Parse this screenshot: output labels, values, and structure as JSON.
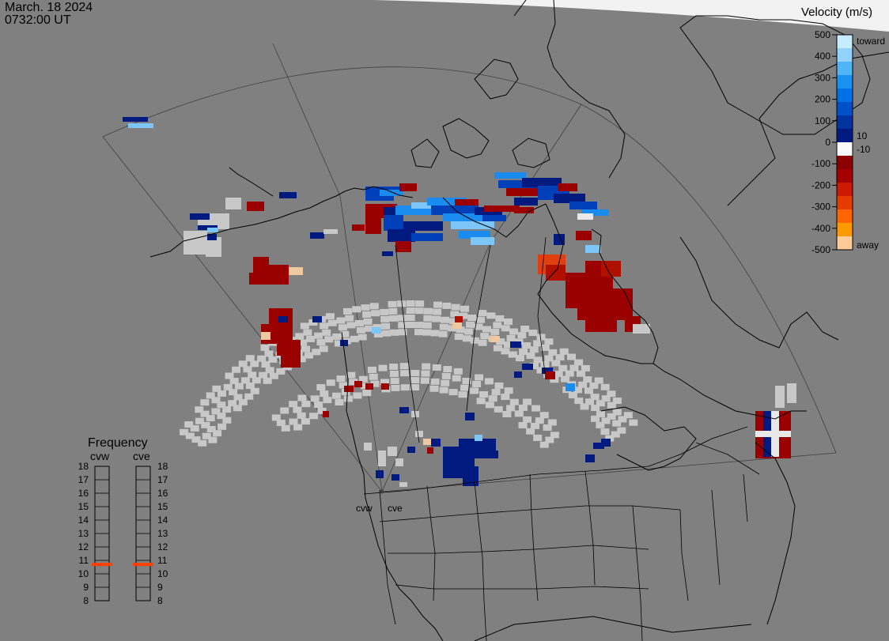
{
  "timestamp": {
    "date": "March. 18 2024",
    "time": "0732:00 UT"
  },
  "colors": {
    "background": "#808080",
    "polar_cap": "#f2f2f2",
    "coast": "#000000",
    "fov": "#404040",
    "ground_scatter": "#c8c8c8",
    "freq_marker": "#ff4000"
  },
  "legend": {
    "title": "Velocity (m/s)",
    "ticks": [
      "500",
      "400",
      "300",
      "200",
      "100",
      "0",
      "-100",
      "-200",
      "-300",
      "-400",
      "-500"
    ],
    "small_ticks": [
      "10",
      "-10"
    ],
    "end_labels": {
      "top": "toward",
      "bottom": "away"
    },
    "colors": [
      "#ffcc99",
      "#ff9900",
      "#ff6600",
      "#e63b00",
      "#cc1a00",
      "#a50000",
      "#8c0000",
      "#fafafa",
      "#001a80",
      "#0033a0",
      "#0050c8",
      "#0070e6",
      "#1a90f0",
      "#50b4f5",
      "#90d2fa",
      "#c8ecff"
    ]
  },
  "frequency": {
    "title": "Frequency",
    "radars": [
      {
        "name": "cvw",
        "value": 10.7
      },
      {
        "name": "cve",
        "value": 10.7
      }
    ],
    "scale": [
      "18",
      "17",
      "16",
      "15",
      "14",
      "13",
      "12",
      "11",
      "10",
      "9",
      "8"
    ]
  },
  "radar_sites": [
    {
      "name": "cvw"
    },
    {
      "name": "cve"
    }
  ]
}
